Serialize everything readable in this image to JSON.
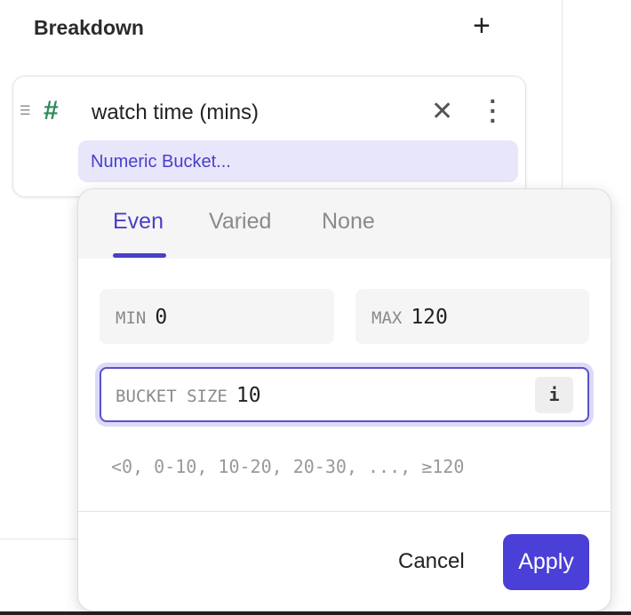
{
  "header": {
    "title": "Breakdown",
    "add_icon": "plus-icon"
  },
  "card": {
    "field_name": "watch time (mins)",
    "type_icon": "hash-icon",
    "chip_label": "Numeric Bucket..."
  },
  "popover": {
    "tabs": [
      {
        "label": "Even",
        "active": true
      },
      {
        "label": "Varied",
        "active": false
      },
      {
        "label": "None",
        "active": false
      }
    ],
    "min": {
      "label": "MIN",
      "value": "0"
    },
    "max": {
      "label": "MAX",
      "value": "120"
    },
    "bucket_size": {
      "label": "BUCKET SIZE",
      "value": "10",
      "info": "i"
    },
    "preview": "<0, 0-10, 10-20, 20-30, ..., ≥120",
    "cancel_label": "Cancel",
    "apply_label": "Apply"
  },
  "colors": {
    "accent": "#4a3fd6",
    "chip_bg": "#e7e6fb",
    "hash": "#2e8a5a"
  }
}
